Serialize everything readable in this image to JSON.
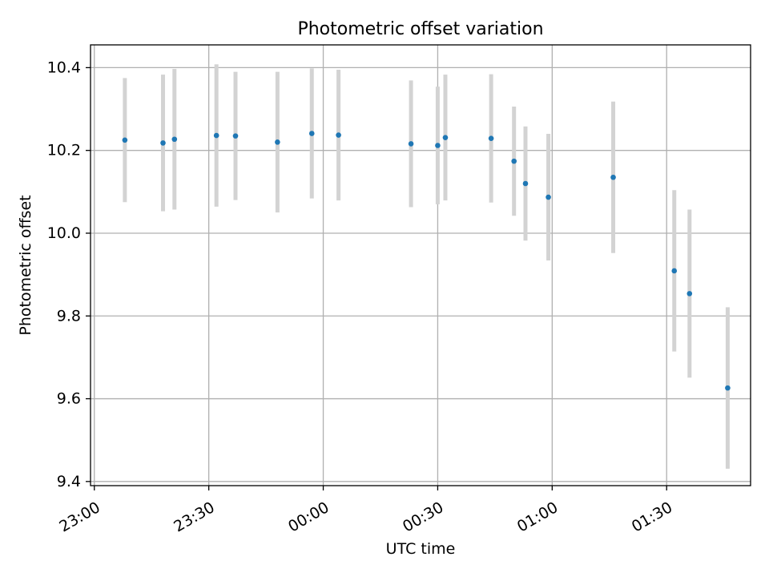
{
  "chart_data": {
    "type": "scatter",
    "title": "Photometric offset variation",
    "xlabel": "UTC time",
    "ylabel": "Photometric offset",
    "xlim": [
      "22:59",
      "01:52"
    ],
    "ylim": [
      9.39,
      10.455
    ],
    "x_ticks": [
      "23:00",
      "23:30",
      "00:00",
      "00:30",
      "01:00",
      "01:30"
    ],
    "y_ticks": [
      9.4,
      9.6,
      9.8,
      10.0,
      10.2,
      10.4
    ],
    "grid": true,
    "colors": {
      "points": "#1f77b4",
      "error_bars": "#d3d3d3",
      "grid": "#b0b0b0"
    },
    "points": [
      {
        "time": "23:08",
        "y": 10.225,
        "err": 0.15
      },
      {
        "time": "23:18",
        "y": 10.218,
        "err": 0.165
      },
      {
        "time": "23:21",
        "y": 10.227,
        "err": 0.17
      },
      {
        "time": "23:32",
        "y": 10.236,
        "err": 0.172
      },
      {
        "time": "23:37",
        "y": 10.235,
        "err": 0.155
      },
      {
        "time": "23:48",
        "y": 10.22,
        "err": 0.17
      },
      {
        "time": "23:57",
        "y": 10.241,
        "err": 0.157
      },
      {
        "time": "00:04",
        "y": 10.237,
        "err": 0.158
      },
      {
        "time": "00:23",
        "y": 10.216,
        "err": 0.153
      },
      {
        "time": "00:30",
        "y": 10.212,
        "err": 0.142
      },
      {
        "time": "00:32",
        "y": 10.231,
        "err": 0.152
      },
      {
        "time": "00:44",
        "y": 10.229,
        "err": 0.155
      },
      {
        "time": "00:50",
        "y": 10.174,
        "err": 0.132
      },
      {
        "time": "00:53",
        "y": 10.12,
        "err": 0.138
      },
      {
        "time": "00:59",
        "y": 10.087,
        "err": 0.153
      },
      {
        "time": "01:16",
        "y": 10.135,
        "err": 0.183
      },
      {
        "time": "01:32",
        "y": 9.909,
        "err": 0.195
      },
      {
        "time": "01:36",
        "y": 9.854,
        "err": 0.203
      },
      {
        "time": "01:46",
        "y": 9.626,
        "err": 0.195
      }
    ]
  }
}
